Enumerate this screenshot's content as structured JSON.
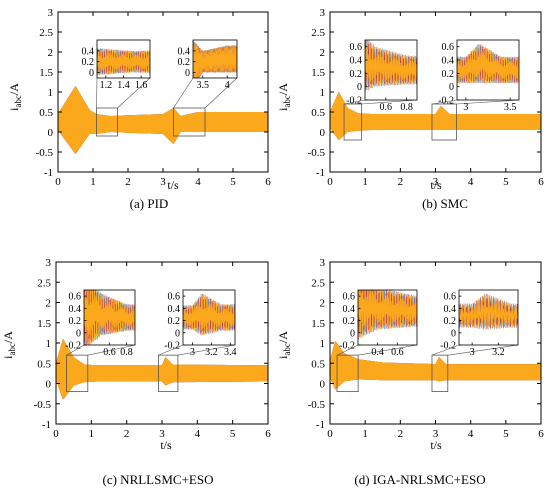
{
  "figure": {
    "panels": [
      {
        "id": "a",
        "caption": "(a) PID",
        "ylabel_main": "i",
        "ylabel_sub": "abc",
        "ylabel_unit": "/A",
        "xlabel": "t/s"
      },
      {
        "id": "b",
        "caption": "(b) SMC",
        "ylabel_main": "i",
        "ylabel_sub": "abc",
        "ylabel_unit": "/A",
        "xlabel": "t/s"
      },
      {
        "id": "c",
        "caption": "(c) NRLLSMC+ESO",
        "ylabel_main": "i",
        "ylabel_sub": "abc",
        "ylabel_unit": "/A",
        "xlabel": "t/s"
      },
      {
        "id": "d",
        "caption": "(d) IGA-NRLSMC+ESO",
        "ylabel_main": "i",
        "ylabel_sub": "abc",
        "ylabel_unit": "/A",
        "xlabel": "t/s"
      }
    ]
  },
  "colors": {
    "phase_a": "#1f77b4",
    "phase_b": "#d62728",
    "phase_c": "#ffae1a",
    "axis": "#000000",
    "inset_frame": "#555555"
  },
  "chart_data": [
    {
      "type": "line",
      "title": "",
      "caption": "(a) PID",
      "xlabel": "t/s",
      "ylabel": "iabc/A",
      "xlim": [
        0,
        6
      ],
      "ylim": [
        -1,
        3
      ],
      "xticks": [
        "0",
        "1",
        "2",
        "3",
        "4",
        "5",
        "6"
      ],
      "yticks": [
        "-1",
        "-0.5",
        "0",
        "0.5",
        "1",
        "1.5",
        "2",
        "2.5",
        "3"
      ],
      "series": [
        {
          "color": "#1f77b4",
          "x": [
            0,
            0.5,
            0.9,
            1.1,
            1.5,
            2,
            3,
            3.3,
            3.5,
            4,
            5,
            6
          ],
          "y_center": [
            0.25,
            0.3,
            0.25,
            0.2,
            0.2,
            0.2,
            0.2,
            0.15,
            0.2,
            0.25,
            0.25,
            0.25
          ],
          "amplitude": [
            0.2,
            0.85,
            0.3,
            0.25,
            0.2,
            0.22,
            0.25,
            0.45,
            0.2,
            0.25,
            0.25,
            0.25
          ]
        },
        {
          "color": "#d62728",
          "x": [
            0,
            0.5,
            0.9,
            1.1,
            1.5,
            2,
            3,
            3.3,
            3.5,
            4,
            5,
            6
          ],
          "y_center": [
            0.25,
            0.3,
            0.25,
            0.2,
            0.2,
            0.2,
            0.2,
            0.15,
            0.2,
            0.25,
            0.25,
            0.25
          ],
          "amplitude": [
            0.2,
            0.85,
            0.3,
            0.25,
            0.2,
            0.22,
            0.25,
            0.45,
            0.2,
            0.25,
            0.25,
            0.25
          ]
        },
        {
          "color": "#ffae1a",
          "x": [
            0,
            0.5,
            0.9,
            1.1,
            1.5,
            2,
            3,
            3.3,
            3.5,
            4,
            5,
            6
          ],
          "y_center": [
            0.25,
            0.3,
            0.25,
            0.2,
            0.2,
            0.2,
            0.2,
            0.15,
            0.2,
            0.25,
            0.25,
            0.25
          ],
          "amplitude": [
            0.2,
            0.85,
            0.3,
            0.25,
            0.2,
            0.22,
            0.25,
            0.45,
            0.2,
            0.25,
            0.25,
            0.25
          ]
        }
      ],
      "insets": [
        {
          "xlim": [
            1.1,
            1.7
          ],
          "ylim": [
            -0.1,
            0.6
          ],
          "xticks": [
            "1.2",
            "1.4",
            "1.6"
          ],
          "yticks": [
            "0.4",
            "0.2",
            "0"
          ]
        },
        {
          "xlim": [
            3.3,
            4.2
          ],
          "ylim": [
            -0.1,
            0.6
          ],
          "xticks": [
            "3.5",
            "4"
          ],
          "yticks": [
            "0.4",
            "0.2",
            "0"
          ]
        }
      ]
    },
    {
      "type": "line",
      "title": "",
      "caption": "(b) SMC",
      "xlabel": "t/s",
      "ylabel": "iabc/A",
      "xlim": [
        0,
        6
      ],
      "ylim": [
        -1,
        3
      ],
      "xticks": [
        "0",
        "1",
        "2",
        "3",
        "4",
        "5",
        "6"
      ],
      "yticks": [
        "-1",
        "-0.5",
        "0",
        "0.5",
        "1",
        "1.5",
        "2",
        "2.5",
        "3"
      ],
      "series": [
        {
          "color": "#1f77b4",
          "x": [
            0,
            0.25,
            0.5,
            0.8,
            1.2,
            3,
            3.15,
            3.4,
            6
          ],
          "y_center": [
            0.3,
            0.4,
            0.3,
            0.25,
            0.25,
            0.25,
            0.35,
            0.25,
            0.25
          ],
          "amplitude": [
            0.2,
            0.6,
            0.3,
            0.22,
            0.2,
            0.2,
            0.3,
            0.2,
            0.2
          ]
        },
        {
          "color": "#d62728",
          "x": [
            0,
            0.25,
            0.5,
            0.8,
            1.2,
            3,
            3.15,
            3.4,
            6
          ],
          "y_center": [
            0.3,
            0.4,
            0.3,
            0.25,
            0.25,
            0.25,
            0.35,
            0.25,
            0.25
          ],
          "amplitude": [
            0.2,
            0.6,
            0.3,
            0.22,
            0.2,
            0.2,
            0.3,
            0.2,
            0.2
          ]
        },
        {
          "color": "#ffae1a",
          "x": [
            0,
            0.25,
            0.5,
            0.8,
            1.2,
            3,
            3.15,
            3.4,
            6
          ],
          "y_center": [
            0.3,
            0.4,
            0.3,
            0.25,
            0.25,
            0.25,
            0.35,
            0.25,
            0.25
          ],
          "amplitude": [
            0.2,
            0.6,
            0.3,
            0.22,
            0.2,
            0.2,
            0.3,
            0.2,
            0.2
          ]
        }
      ],
      "insets": [
        {
          "xlim": [
            0.4,
            0.9
          ],
          "ylim": [
            -0.2,
            0.7
          ],
          "xticks": [
            "0.6",
            "0.8"
          ],
          "yticks": [
            "0.6",
            "0.4",
            "0.2",
            "0",
            "-0.2"
          ]
        },
        {
          "xlim": [
            2.9,
            3.6
          ],
          "ylim": [
            -0.2,
            0.7
          ],
          "xticks": [
            "3",
            "3.5"
          ],
          "yticks": [
            "0.6",
            "0.4",
            "0.2",
            "0",
            "-0.2"
          ]
        }
      ]
    },
    {
      "type": "line",
      "title": "",
      "caption": "(c) NRLLSMC+ESO",
      "xlabel": "t/s",
      "ylabel": "iabc/A",
      "xlim": [
        0,
        6
      ],
      "ylim": [
        -1,
        3
      ],
      "xticks": [
        "0",
        "1",
        "2",
        "3",
        "4",
        "5",
        "6"
      ],
      "yticks": [
        "-1",
        "-0.5",
        "0",
        "0.5",
        "1",
        "1.5",
        "2",
        "2.5",
        "3"
      ],
      "series": [
        {
          "color": "#1f77b4",
          "x": [
            0,
            0.2,
            0.5,
            0.8,
            1.2,
            3,
            3.1,
            3.3,
            6
          ],
          "y_center": [
            0.3,
            0.35,
            0.3,
            0.25,
            0.25,
            0.25,
            0.3,
            0.25,
            0.25
          ],
          "amplitude": [
            0.2,
            0.75,
            0.35,
            0.22,
            0.2,
            0.2,
            0.35,
            0.22,
            0.2
          ]
        },
        {
          "color": "#d62728",
          "x": [
            0,
            0.2,
            0.5,
            0.8,
            1.2,
            3,
            3.1,
            3.3,
            6
          ],
          "y_center": [
            0.3,
            0.35,
            0.3,
            0.25,
            0.25,
            0.25,
            0.3,
            0.25,
            0.25
          ],
          "amplitude": [
            0.2,
            0.75,
            0.35,
            0.22,
            0.2,
            0.2,
            0.35,
            0.22,
            0.2
          ]
        },
        {
          "color": "#ffae1a",
          "x": [
            0,
            0.2,
            0.5,
            0.8,
            1.2,
            3,
            3.1,
            3.3,
            6
          ],
          "y_center": [
            0.3,
            0.35,
            0.3,
            0.25,
            0.25,
            0.25,
            0.3,
            0.25,
            0.25
          ],
          "amplitude": [
            0.2,
            0.75,
            0.35,
            0.22,
            0.2,
            0.2,
            0.35,
            0.22,
            0.2
          ]
        }
      ],
      "insets": [
        {
          "xlim": [
            0.3,
            0.9
          ],
          "ylim": [
            -0.2,
            0.7
          ],
          "xticks": [
            "0.6",
            "0.8"
          ],
          "yticks": [
            "0.6",
            "0.4",
            "0.2",
            "0",
            "-0.2"
          ]
        },
        {
          "xlim": [
            2.9,
            3.45
          ],
          "ylim": [
            -0.2,
            0.7
          ],
          "xticks": [
            "3",
            "3.2",
            "3.4"
          ],
          "yticks": [
            "0.6",
            "0.4",
            "0.2",
            "0",
            "-0.2"
          ]
        }
      ]
    },
    {
      "type": "line",
      "title": "",
      "caption": "(d) IGA-NRLSMC+ESO",
      "xlabel": "t/s",
      "ylabel": "iabc/A",
      "xlim": [
        0,
        6
      ],
      "ylim": [
        -1,
        3
      ],
      "xticks": [
        "0",
        "1",
        "2",
        "3",
        "4",
        "5",
        "6"
      ],
      "yticks": [
        "-1",
        "-0.5",
        "0",
        "0.5",
        "1",
        "1.5",
        "2",
        "2.5",
        "3"
      ],
      "series": [
        {
          "color": "#1f77b4",
          "x": [
            0,
            0.15,
            0.4,
            0.8,
            1.5,
            3,
            3.1,
            3.3,
            6
          ],
          "y_center": [
            0.35,
            0.45,
            0.4,
            0.35,
            0.3,
            0.28,
            0.35,
            0.28,
            0.28
          ],
          "amplitude": [
            0.2,
            0.6,
            0.35,
            0.25,
            0.22,
            0.2,
            0.3,
            0.2,
            0.2
          ]
        },
        {
          "color": "#d62728",
          "x": [
            0,
            0.15,
            0.4,
            0.8,
            1.5,
            3,
            3.1,
            3.3,
            6
          ],
          "y_center": [
            0.35,
            0.45,
            0.4,
            0.35,
            0.3,
            0.28,
            0.35,
            0.28,
            0.28
          ],
          "amplitude": [
            0.2,
            0.6,
            0.35,
            0.25,
            0.22,
            0.2,
            0.3,
            0.2,
            0.2
          ]
        },
        {
          "color": "#ffae1a",
          "x": [
            0,
            0.15,
            0.4,
            0.8,
            1.5,
            3,
            3.1,
            3.3,
            6
          ],
          "y_center": [
            0.35,
            0.45,
            0.4,
            0.35,
            0.3,
            0.28,
            0.35,
            0.28,
            0.28
          ],
          "amplitude": [
            0.2,
            0.6,
            0.35,
            0.25,
            0.22,
            0.2,
            0.3,
            0.2,
            0.2
          ]
        }
      ],
      "insets": [
        {
          "xlim": [
            0.2,
            0.8
          ],
          "ylim": [
            -0.2,
            0.7
          ],
          "xticks": [
            "0.4",
            "0.6"
          ],
          "yticks": [
            "0.6",
            "0.4",
            "0.2",
            "0",
            "-0.2"
          ]
        },
        {
          "xlim": [
            2.9,
            3.35
          ],
          "ylim": [
            -0.2,
            0.7
          ],
          "xticks": [
            "3",
            "3.2"
          ],
          "yticks": [
            "0.6",
            "0.4",
            "0.2",
            "0",
            "-0.2"
          ]
        }
      ]
    }
  ]
}
